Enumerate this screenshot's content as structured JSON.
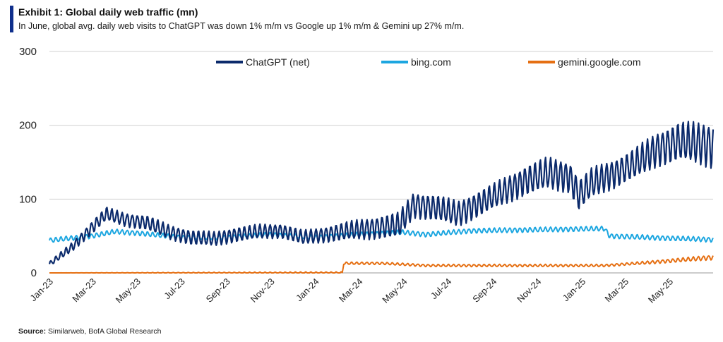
{
  "header": {
    "title": "Exhibit 1: Global daily web traffic (mn)",
    "subtitle": "In June, global avg. daily web visits to ChatGPT was down 1% m/m vs Google up 1% m/m & Gemini up 27% m/m."
  },
  "footer": {
    "source_label": "Source:",
    "source_text": " Similarweb, BofA Global Research"
  },
  "chart_data": {
    "type": "line",
    "title": "Exhibit 1: Global daily web traffic (mn)",
    "ylim": [
      0,
      300
    ],
    "yticks": [
      0,
      100,
      200,
      300
    ],
    "grid": true,
    "legend_position": "top",
    "xticks": [
      "Jan-23",
      "Mar-23",
      "May-23",
      "Jul-23",
      "Sep-23",
      "Nov-23",
      "Jan-24",
      "Mar-24",
      "May-24",
      "Jul-24",
      "Sep-24",
      "Nov-24",
      "Jan-25",
      "Mar-25",
      "May-25"
    ],
    "x_range": [
      "2023-01-01",
      "2025-06-30"
    ],
    "series": [
      {
        "name": "ChatGPT (net)",
        "color": "#0b2a6b",
        "weekly_oscillation": true,
        "points": [
          [
            "2023-01-01",
            12
          ],
          [
            "2023-02-01",
            35
          ],
          [
            "2023-03-01",
            62
          ],
          [
            "2023-03-20",
            80
          ],
          [
            "2023-04-15",
            72
          ],
          [
            "2023-05-15",
            68
          ],
          [
            "2023-06-15",
            55
          ],
          [
            "2023-07-15",
            48
          ],
          [
            "2023-08-15",
            46
          ],
          [
            "2023-09-15",
            52
          ],
          [
            "2023-10-15",
            56
          ],
          [
            "2023-11-15",
            57
          ],
          [
            "2023-12-15",
            48
          ],
          [
            "2024-01-15",
            52
          ],
          [
            "2024-02-15",
            57
          ],
          [
            "2024-03-15",
            60
          ],
          [
            "2024-04-25",
            65
          ],
          [
            "2024-05-15",
            92
          ],
          [
            "2024-06-15",
            88
          ],
          [
            "2024-07-15",
            80
          ],
          [
            "2024-08-15",
            95
          ],
          [
            "2024-09-15",
            110
          ],
          [
            "2024-10-15",
            125
          ],
          [
            "2024-11-15",
            135
          ],
          [
            "2024-12-15",
            130
          ],
          [
            "2024-12-28",
            105
          ],
          [
            "2025-01-15",
            122
          ],
          [
            "2025-02-15",
            135
          ],
          [
            "2025-03-15",
            148
          ],
          [
            "2025-04-15",
            168
          ],
          [
            "2025-05-15",
            178
          ],
          [
            "2025-06-15",
            175
          ],
          [
            "2025-06-30",
            172
          ]
        ],
        "amplitude": [
          [
            "2023-01-01",
            3
          ],
          [
            "2023-03-01",
            8
          ],
          [
            "2023-06-01",
            9
          ],
          [
            "2024-01-01",
            9
          ],
          [
            "2024-05-01",
            16
          ],
          [
            "2024-09-01",
            16
          ],
          [
            "2024-11-15",
            20
          ],
          [
            "2025-03-01",
            18
          ],
          [
            "2025-06-30",
            28
          ]
        ]
      },
      {
        "name": "bing.com",
        "color": "#1ca6e0",
        "weekly_oscillation": true,
        "points": [
          [
            "2023-01-01",
            44
          ],
          [
            "2023-03-01",
            50
          ],
          [
            "2023-04-01",
            56
          ],
          [
            "2023-05-01",
            54
          ],
          [
            "2023-07-01",
            48
          ],
          [
            "2023-09-01",
            48
          ],
          [
            "2023-11-01",
            52
          ],
          [
            "2024-01-01",
            48
          ],
          [
            "2024-03-01",
            52
          ],
          [
            "2024-05-01",
            55
          ],
          [
            "2024-06-01",
            52
          ],
          [
            "2024-08-01",
            57
          ],
          [
            "2024-10-01",
            58
          ],
          [
            "2024-12-01",
            59
          ],
          [
            "2025-02-01",
            60
          ],
          [
            "2025-02-08",
            50
          ],
          [
            "2025-04-01",
            48
          ],
          [
            "2025-06-30",
            45
          ]
        ],
        "amplitude": [
          [
            "2023-01-01",
            3
          ],
          [
            "2025-06-30",
            3
          ]
        ]
      },
      {
        "name": "gemini.google.com",
        "color": "#e56f12",
        "weekly_oscillation": true,
        "points": [
          [
            "2023-01-01",
            0
          ],
          [
            "2024-02-07",
            0
          ],
          [
            "2024-02-09",
            13
          ],
          [
            "2024-04-01",
            13
          ],
          [
            "2024-06-01",
            10
          ],
          [
            "2024-09-01",
            10
          ],
          [
            "2024-12-01",
            10
          ],
          [
            "2025-02-01",
            10
          ],
          [
            "2025-04-01",
            14
          ],
          [
            "2025-06-30",
            21
          ]
        ],
        "amplitude": [
          [
            "2023-01-01",
            0
          ],
          [
            "2024-02-09",
            1.5
          ],
          [
            "2025-03-01",
            1.5
          ],
          [
            "2025-06-30",
            3
          ]
        ]
      }
    ]
  }
}
